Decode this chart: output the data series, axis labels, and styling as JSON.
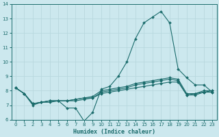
{
  "xlabel": "Humidex (Indice chaleur)",
  "bg_color": "#cce8ee",
  "line_color": "#1a6b6b",
  "grid_color": "#b8d8de",
  "xlim": [
    -0.5,
    23.5
  ],
  "ylim": [
    6,
    14
  ],
  "xticks": [
    0,
    1,
    2,
    3,
    4,
    5,
    6,
    7,
    8,
    9,
    10,
    11,
    12,
    13,
    14,
    15,
    16,
    17,
    18,
    19,
    20,
    21,
    22,
    23
  ],
  "yticks": [
    6,
    7,
    8,
    9,
    10,
    11,
    12,
    13,
    14
  ],
  "line1_y": [
    8.2,
    7.8,
    7.0,
    7.2,
    7.2,
    7.3,
    6.8,
    6.8,
    5.9,
    6.5,
    8.1,
    8.3,
    9.0,
    10.0,
    11.6,
    12.7,
    13.1,
    13.5,
    12.7,
    9.5,
    8.9,
    8.4,
    8.4,
    7.9
  ],
  "line2_y": [
    8.2,
    7.8,
    7.1,
    7.2,
    7.3,
    7.3,
    7.3,
    7.3,
    7.4,
    7.5,
    7.8,
    7.9,
    8.0,
    8.1,
    8.2,
    8.3,
    8.4,
    8.5,
    8.6,
    8.6,
    7.7,
    7.7,
    7.9,
    7.9
  ],
  "line3_y": [
    8.2,
    7.8,
    7.1,
    7.2,
    7.3,
    7.3,
    7.3,
    7.4,
    7.5,
    7.5,
    7.9,
    8.0,
    8.1,
    8.2,
    8.4,
    8.5,
    8.6,
    8.7,
    8.8,
    8.7,
    7.7,
    7.8,
    7.9,
    8.0
  ],
  "line4_y": [
    8.2,
    7.8,
    7.1,
    7.2,
    7.3,
    7.3,
    7.3,
    7.4,
    7.5,
    7.6,
    8.0,
    8.1,
    8.2,
    8.3,
    8.5,
    8.6,
    8.7,
    8.8,
    8.9,
    8.8,
    7.8,
    7.8,
    8.0,
    8.0
  ],
  "xlabel_fontsize": 6,
  "tick_fontsize": 5,
  "marker_size": 2.0,
  "linewidth": 0.8
}
